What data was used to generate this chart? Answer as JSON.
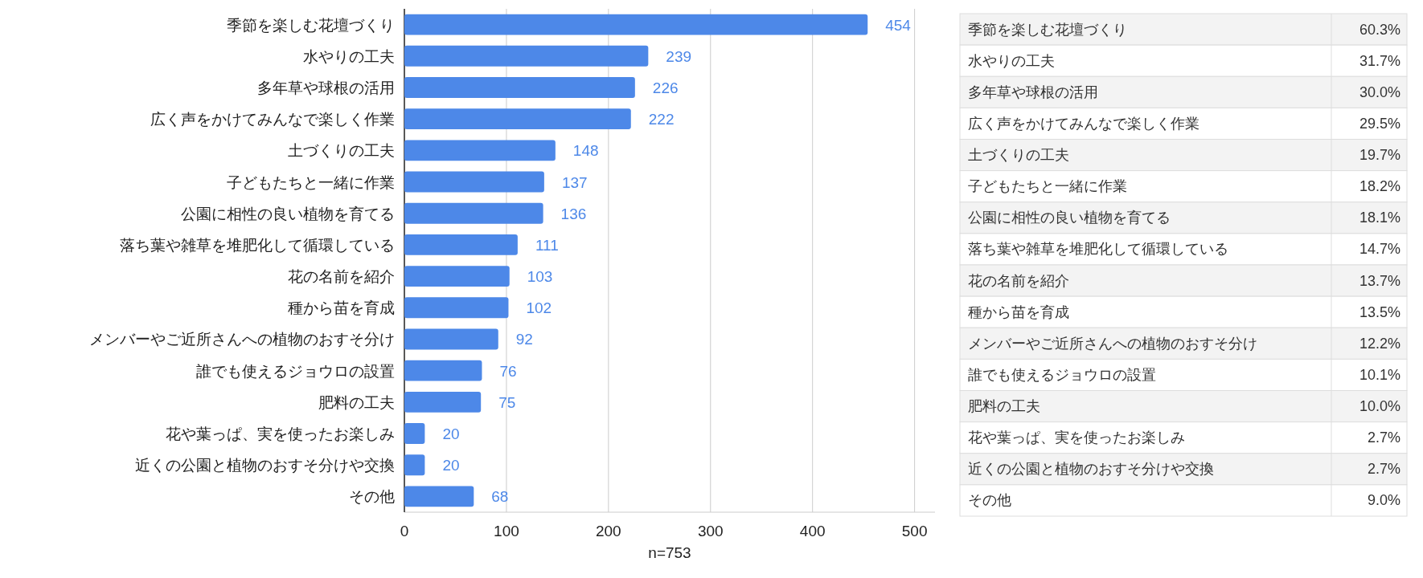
{
  "chart_data": [
    {
      "type": "bar",
      "orientation": "horizontal",
      "categories": [
        "季節を楽しむ花壇づくり",
        "水やりの工夫",
        "多年草や球根の活用",
        "広く声をかけてみんなで楽しく作業",
        "土づくりの工夫",
        "子どもたちと一緒に作業",
        "公園に相性の良い植物を育てる",
        "落ち葉や雑草を堆肥化して循環している",
        "花の名前を紹介",
        "種から苗を育成",
        "メンバーやご近所さんへの植物のおすそ分け",
        "誰でも使えるジョウロの設置",
        "肥料の工夫",
        "花や葉っぱ、実を使ったお楽しみ",
        "近くの公園と植物のおすそ分けや交換",
        "その他"
      ],
      "values": [
        454,
        239,
        226,
        222,
        148,
        137,
        136,
        111,
        103,
        102,
        92,
        76,
        75,
        20,
        20,
        68
      ],
      "color": "#4d88e8",
      "xlim": [
        0,
        520
      ],
      "xticks": [
        0,
        100,
        200,
        300,
        400,
        500
      ],
      "xlabel": "n=753",
      "grid": "x",
      "data_labels": true
    },
    {
      "type": "other",
      "categories": [
        "季節を楽しむ花壇づくり",
        "水やりの工夫",
        "多年草や球根の活用",
        "広く声をかけてみんなで楽しく作業",
        "土づくりの工夫",
        "子どもたちと一緒に作業",
        "公園に相性の良い植物を育てる",
        "落ち葉や雑草を堆肥化して循環している",
        "花の名前を紹介",
        "種から苗を育成",
        "メンバーやご近所さんへの植物のおすそ分け",
        "誰でも使えるジョウロの設置",
        "肥料の工夫",
        "花や葉っぱ、実を使ったお楽しみ",
        "近くの公園と植物のおすそ分けや交換",
        "その他"
      ],
      "value_labels": [
        "60.3%",
        "31.7%",
        "30.0%",
        "29.5%",
        "19.7%",
        "18.2%",
        "18.1%",
        "14.7%",
        "13.7%",
        "13.5%",
        "12.2%",
        "10.1%",
        "10.0%",
        "2.7%",
        "2.7%",
        "9.0%"
      ]
    }
  ]
}
